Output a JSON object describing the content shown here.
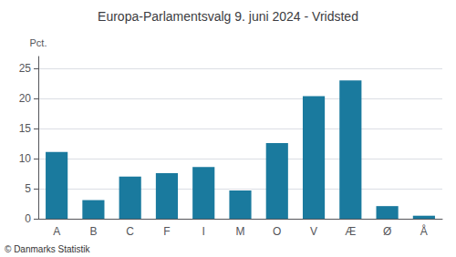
{
  "chart_data": {
    "type": "bar",
    "title": "Europa-Parlamentsvalg 9. juni 2024 - Vridsted",
    "ylabel": "Pct.",
    "annotations": [
      "© Danmarks Statistik"
    ],
    "categories": [
      "A",
      "B",
      "C",
      "F",
      "I",
      "M",
      "O",
      "V",
      "Æ",
      "Ø",
      "Å"
    ],
    "values": [
      11.1,
      3.1,
      7.0,
      7.6,
      8.6,
      4.7,
      12.6,
      20.4,
      23.0,
      2.1,
      0.5
    ],
    "color": "#1a7a9e",
    "ylim": [
      0,
      27
    ],
    "yticks": [
      0,
      5,
      10,
      15,
      20,
      25
    ],
    "grid": true
  }
}
